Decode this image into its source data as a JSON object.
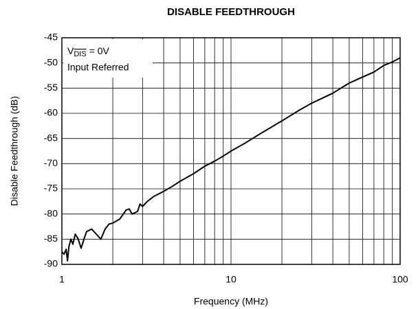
{
  "chart_data": {
    "type": "line",
    "title": "DISABLE FEEDTHROUGH",
    "xlabel": "Frequency (MHz)",
    "ylabel": "Disable Feedthrough (dB)",
    "annotation": {
      "symbol": "V",
      "subscript": "DIS",
      "value": "= 0V",
      "note": "Input Referred"
    },
    "xscale": "log",
    "xlim": [
      1,
      100
    ],
    "xticks": [
      1,
      10,
      100
    ],
    "xminor": [
      2,
      3,
      4,
      5,
      6,
      7,
      8,
      9,
      20,
      30,
      40,
      50,
      60,
      70,
      80,
      90
    ],
    "ylim": [
      -90,
      -45
    ],
    "yticks": [
      -90,
      -85,
      -80,
      -75,
      -70,
      -65,
      -60,
      -55,
      -50,
      -45
    ],
    "grid": true,
    "series": [
      {
        "name": "Disable Feedthrough",
        "color": "#000000",
        "x": [
          1.0,
          1.03,
          1.06,
          1.08,
          1.1,
          1.13,
          1.16,
          1.2,
          1.25,
          1.3,
          1.35,
          1.4,
          1.5,
          1.6,
          1.7,
          1.8,
          1.9,
          2.0,
          2.2,
          2.4,
          2.5,
          2.6,
          2.8,
          2.9,
          3.0,
          3.2,
          3.5,
          4,
          4.5,
          5,
          6,
          7,
          8,
          9,
          10,
          12,
          15,
          20,
          25,
          30,
          40,
          50,
          60,
          70,
          80,
          90,
          100
        ],
        "values": [
          -87.5,
          -88,
          -87,
          -89.3,
          -86.5,
          -85,
          -86,
          -84,
          -85,
          -86.8,
          -85,
          -83.5,
          -83,
          -84,
          -85,
          -83,
          -82,
          -81.8,
          -81,
          -79.2,
          -79,
          -80,
          -79.5,
          -78,
          -78.5,
          -77.5,
          -76.5,
          -75.5,
          -74.5,
          -73.5,
          -72,
          -70.5,
          -69.5,
          -68.5,
          -67.5,
          -66,
          -64,
          -61.5,
          -59.5,
          -58,
          -56,
          -54,
          -52.8,
          -51.8,
          -50.5,
          -49.8,
          -49
        ]
      }
    ]
  }
}
